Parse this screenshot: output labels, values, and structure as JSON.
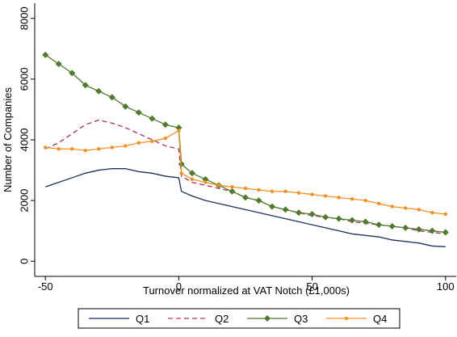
{
  "chart_data": {
    "type": "line",
    "x_label": "Turnover normalized at VAT Notch (£1,000s)",
    "y_label": "Number of Companies",
    "x": [
      -50,
      -45,
      -40,
      -35,
      -30,
      -25,
      -20,
      -15,
      -10,
      -5,
      0,
      1,
      5,
      10,
      15,
      20,
      25,
      30,
      35,
      40,
      45,
      50,
      55,
      60,
      65,
      70,
      75,
      80,
      85,
      90,
      95,
      100
    ],
    "series": [
      {
        "name": "Q1",
        "color": "#1f2f5e",
        "dash": false,
        "marker": null,
        "values": [
          2450,
          2600,
          2750,
          2900,
          3000,
          3050,
          3050,
          2950,
          2900,
          2800,
          2750,
          2300,
          2150,
          2000,
          1900,
          1800,
          1700,
          1600,
          1500,
          1400,
          1300,
          1200,
          1100,
          1000,
          900,
          850,
          800,
          700,
          650,
          600,
          500,
          480
        ]
      },
      {
        "name": "Q2",
        "color": "#b2305f",
        "dash": true,
        "marker": null,
        "values": [
          3700,
          3900,
          4200,
          4500,
          4650,
          4550,
          4400,
          4200,
          4000,
          3800,
          3700,
          2800,
          2600,
          2500,
          2400,
          2300,
          2100,
          2000,
          1800,
          1700,
          1600,
          1500,
          1450,
          1400,
          1300,
          1250,
          1200,
          1150,
          1100,
          1000,
          950,
          900
        ]
      },
      {
        "name": "Q3",
        "color": "#4f7b2b",
        "dash": false,
        "marker": "diamond",
        "values": [
          6800,
          6500,
          6200,
          5800,
          5600,
          5400,
          5100,
          4900,
          4700,
          4500,
          4400,
          3200,
          2900,
          2700,
          2500,
          2300,
          2100,
          2000,
          1800,
          1700,
          1600,
          1550,
          1450,
          1400,
          1350,
          1300,
          1200,
          1150,
          1100,
          1050,
          1000,
          950
        ]
      },
      {
        "name": "Q4",
        "color": "#f39020",
        "dash": false,
        "marker": "circle",
        "values": [
          3750,
          3700,
          3700,
          3650,
          3700,
          3750,
          3800,
          3900,
          3950,
          4050,
          4300,
          2900,
          2700,
          2600,
          2500,
          2450,
          2400,
          2350,
          2300,
          2300,
          2250,
          2200,
          2150,
          2100,
          2050,
          2000,
          1900,
          1800,
          1750,
          1700,
          1600,
          1550
        ]
      }
    ],
    "xlim": [
      -54,
      104
    ],
    "ylim": [
      -500,
      8500
    ],
    "xticks": [
      -50,
      0,
      50,
      100
    ],
    "yticks": [
      0,
      2000,
      4000,
      6000,
      8000
    ],
    "legend": "bottom"
  }
}
